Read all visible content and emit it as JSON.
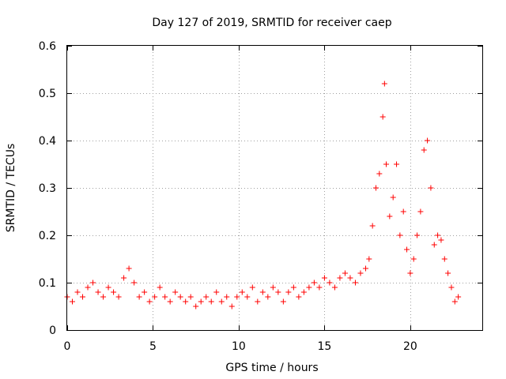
{
  "chart_data": {
    "type": "scatter",
    "title": "Day 127 of 2019, SRMTID for receiver caep",
    "xlabel": "GPS time / hours",
    "ylabel": "SRMTID / TECUs",
    "xlim": [
      0,
      24.2
    ],
    "ylim": [
      0,
      0.6
    ],
    "xticks": [
      0,
      5,
      10,
      15,
      20
    ],
    "xtick_labels": [
      "0",
      "5",
      "10",
      "15",
      "20"
    ],
    "yticks": [
      0,
      0.1,
      0.2,
      0.3,
      0.4,
      0.5,
      0.6
    ],
    "ytick_labels": [
      "0",
      "0.1",
      "0.2",
      "0.3",
      "0.4",
      "0.5",
      "0.6"
    ],
    "grid": true,
    "marker": "+",
    "marker_color": "#ff0000",
    "series": [
      {
        "name": "SRMTID",
        "x": [
          0.0,
          0.3,
          0.6,
          0.9,
          1.2,
          1.5,
          1.8,
          2.1,
          2.4,
          2.7,
          3.0,
          3.3,
          3.6,
          3.9,
          4.2,
          4.5,
          4.8,
          5.1,
          5.4,
          5.7,
          6.0,
          6.3,
          6.6,
          6.9,
          7.2,
          7.5,
          7.8,
          8.1,
          8.4,
          8.7,
          9.0,
          9.3,
          9.6,
          9.9,
          10.2,
          10.5,
          10.8,
          11.1,
          11.4,
          11.7,
          12.0,
          12.3,
          12.6,
          12.9,
          13.2,
          13.5,
          13.8,
          14.1,
          14.4,
          14.7,
          15.0,
          15.3,
          15.6,
          15.9,
          16.2,
          16.5,
          16.8,
          17.1,
          17.4,
          17.6,
          17.8,
          18.0,
          18.2,
          18.4,
          18.5,
          18.6,
          18.8,
          19.0,
          19.2,
          19.4,
          19.6,
          19.8,
          20.0,
          20.2,
          20.4,
          20.6,
          20.8,
          21.0,
          21.2,
          21.4,
          21.6,
          21.8,
          22.0,
          22.2,
          22.4,
          22.6,
          22.8
        ],
        "y": [
          0.07,
          0.06,
          0.08,
          0.07,
          0.09,
          0.1,
          0.08,
          0.07,
          0.09,
          0.08,
          0.07,
          0.11,
          0.13,
          0.1,
          0.07,
          0.08,
          0.06,
          0.07,
          0.09,
          0.07,
          0.06,
          0.08,
          0.07,
          0.06,
          0.07,
          0.05,
          0.06,
          0.07,
          0.06,
          0.08,
          0.06,
          0.07,
          0.05,
          0.07,
          0.08,
          0.07,
          0.09,
          0.06,
          0.08,
          0.07,
          0.09,
          0.08,
          0.06,
          0.08,
          0.09,
          0.07,
          0.08,
          0.09,
          0.1,
          0.09,
          0.11,
          0.1,
          0.09,
          0.11,
          0.12,
          0.11,
          0.1,
          0.12,
          0.13,
          0.15,
          0.22,
          0.3,
          0.33,
          0.45,
          0.52,
          0.35,
          0.24,
          0.28,
          0.35,
          0.2,
          0.25,
          0.17,
          0.12,
          0.15,
          0.2,
          0.25,
          0.38,
          0.4,
          0.3,
          0.18,
          0.2,
          0.19,
          0.15,
          0.12,
          0.09,
          0.06,
          0.07
        ]
      }
    ]
  }
}
